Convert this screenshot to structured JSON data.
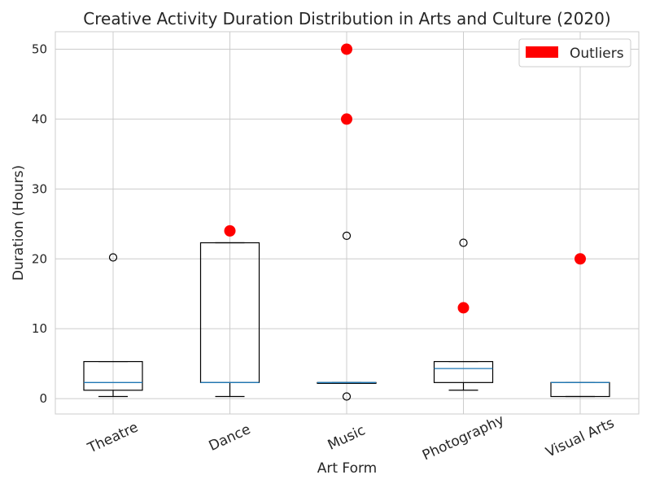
{
  "chart_data": {
    "type": "box",
    "title": "Creative Activity Duration Distribution in Arts and Culture (2020)",
    "xlabel": "Art Form",
    "ylabel": "Duration (Hours)",
    "ylim": [
      -2.2,
      52.5
    ],
    "yticks": [
      0,
      10,
      20,
      30,
      40,
      50
    ],
    "grid": true,
    "legend": {
      "placement": "top-right",
      "entries": [
        {
          "label": "Outliers",
          "color": "#ff0000"
        }
      ]
    },
    "categories": [
      "Theatre",
      "Dance",
      "Music",
      "Photography",
      "Visual Arts"
    ],
    "boxes": [
      {
        "category": "Theatre",
        "whisker_low": 0.3,
        "q1": 1.2,
        "median": 2.3,
        "q3": 5.3,
        "whisker_high": 5.3,
        "fliers": [
          20.2
        ]
      },
      {
        "category": "Dance",
        "whisker_low": 0.3,
        "q1": 2.3,
        "median": 2.3,
        "q3": 22.3,
        "whisker_high": 22.3,
        "fliers": []
      },
      {
        "category": "Music",
        "whisker_low": 2.3,
        "q1": 2.3,
        "median": 2.3,
        "q3": 2.3,
        "whisker_high": 2.3,
        "fliers": [
          0.3,
          23.3
        ]
      },
      {
        "category": "Photography",
        "whisker_low": 1.2,
        "q1": 2.3,
        "median": 4.3,
        "q3": 5.3,
        "whisker_high": 5.3,
        "fliers": [
          22.3
        ]
      },
      {
        "category": "Visual Arts",
        "whisker_low": 0.3,
        "q1": 0.3,
        "median": 2.3,
        "q3": 2.3,
        "whisker_high": 2.3,
        "fliers": []
      }
    ],
    "outliers": [
      {
        "category": "Dance",
        "value": 24
      },
      {
        "category": "Music",
        "value": 40
      },
      {
        "category": "Music",
        "value": 50
      },
      {
        "category": "Photography",
        "value": 13
      },
      {
        "category": "Visual Arts",
        "value": 20
      }
    ],
    "colors": {
      "box": "#000000",
      "median": "#1f77b4",
      "outlier": "#ff0000",
      "grid": "#cccccc",
      "axes": "#cccccc"
    }
  }
}
